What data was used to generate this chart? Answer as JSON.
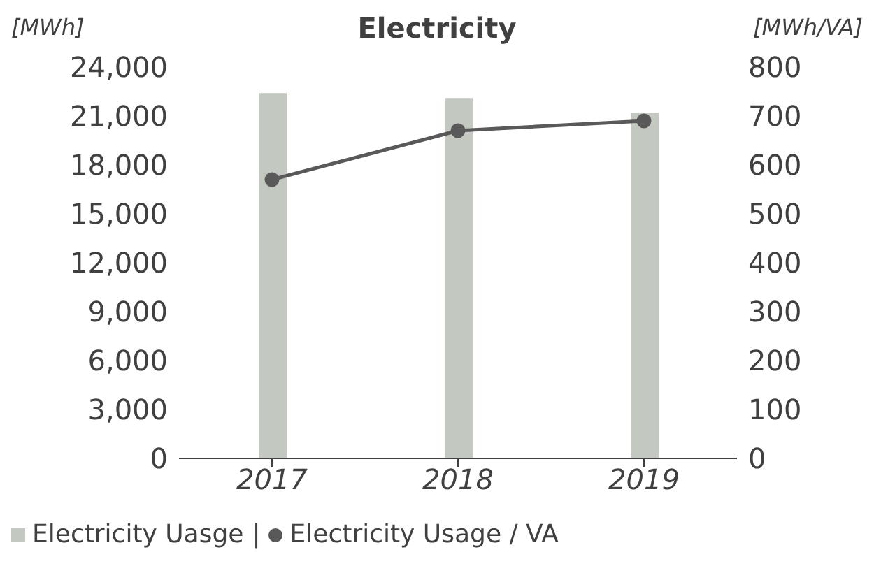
{
  "chart_data": {
    "type": "bar",
    "title": "Electricity",
    "ylabel": "[MWh]",
    "y2label": "[MWh/VA]",
    "categories": [
      "2017",
      "2018",
      "2019"
    ],
    "series": [
      {
        "name": "Electricity Uasge",
        "color": "#c3c9c0",
        "values": [
          22400,
          22100,
          21200
        ]
      },
      {
        "name": "Electricity Usage / VA",
        "type": "line",
        "axis": "y2",
        "color": "#595959",
        "marker": "circle",
        "values": [
          570,
          670,
          690
        ]
      }
    ],
    "ylim": [
      0,
      24000
    ],
    "yticks": [
      0,
      {
        "value": 3000,
        "label": "3,000"
      },
      {
        "value": 6000,
        "label": "6,000"
      },
      {
        "value": 9000,
        "label": "9,000"
      },
      {
        "value": 12000,
        "label": "12,000"
      },
      {
        "value": 15000,
        "label": "15,000"
      },
      {
        "value": 18000,
        "label": "18,000"
      },
      {
        "value": 21000,
        "label": "21,000"
      },
      {
        "value": 24000,
        "label": "24,000"
      }
    ],
    "y2lim": [
      0,
      800
    ],
    "y2ticks": [
      0,
      100,
      200,
      300,
      400,
      500,
      600,
      700,
      800
    ],
    "grid": false,
    "legend": "bottom",
    "annotations": [
      "|"
    ]
  }
}
